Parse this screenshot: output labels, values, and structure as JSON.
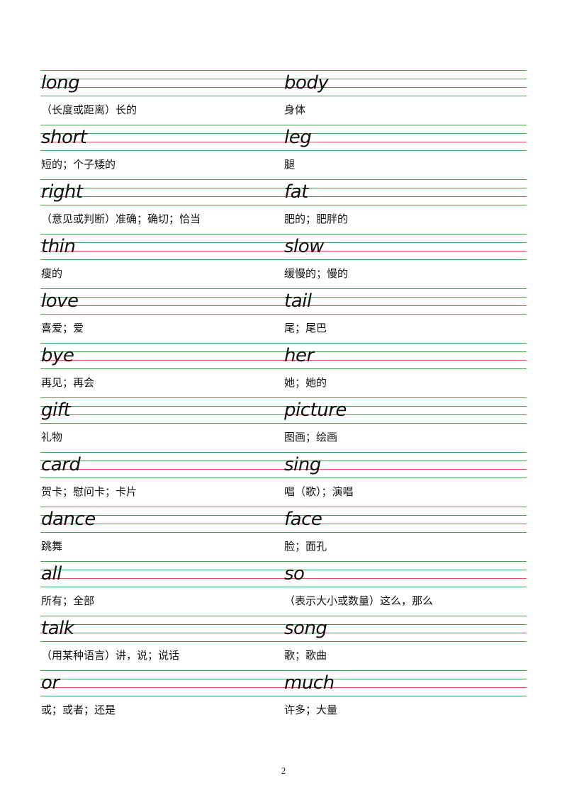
{
  "rows": [
    {
      "left": {
        "word": "long",
        "meaning": "（长度或距离）长的"
      },
      "right": {
        "word": "body",
        "meaning": "身体"
      }
    },
    {
      "left": {
        "word": "short",
        "meaning": "短的；个子矮的"
      },
      "right": {
        "word": "leg",
        "meaning": "腿"
      }
    },
    {
      "left": {
        "word": "right",
        "meaning": "（意见或判断）准确；确切；恰当"
      },
      "right": {
        "word": "fat",
        "meaning": "肥的；肥胖的"
      }
    },
    {
      "left": {
        "word": "thin",
        "meaning": "瘦的"
      },
      "right": {
        "word": "slow",
        "meaning": "缓慢的；慢的"
      }
    },
    {
      "left": {
        "word": "love",
        "meaning": "喜爱；爱"
      },
      "right": {
        "word": "tail",
        "meaning": "尾；尾巴"
      }
    },
    {
      "left": {
        "word": "bye",
        "meaning": "再见；再会"
      },
      "right": {
        "word": "her",
        "meaning": "她；她的"
      }
    },
    {
      "left": {
        "word": "gift",
        "meaning": "礼物"
      },
      "right": {
        "word": "picture",
        "meaning": "图画；绘画"
      }
    },
    {
      "left": {
        "word": "card",
        "meaning": "贺卡；慰问卡；卡片"
      },
      "right": {
        "word": "sing",
        "meaning": "唱（歌）；演唱"
      }
    },
    {
      "left": {
        "word": "dance",
        "meaning": "跳舞"
      },
      "right": {
        "word": "face",
        "meaning": "脸；面孔"
      }
    },
    {
      "left": {
        "word": "all",
        "meaning": "所有；全部"
      },
      "right": {
        "word": "so",
        "meaning": "（表示大小或数量）这么，那么"
      }
    },
    {
      "left": {
        "word": "talk",
        "meaning": "（用某种语言）讲，说；说话"
      },
      "right": {
        "word": "song",
        "meaning": "歌；歌曲"
      }
    },
    {
      "left": {
        "word": "or",
        "meaning": "或；或者；还是"
      },
      "right": {
        "word": "much",
        "meaning": "许多；大量"
      }
    }
  ],
  "page_number": "2",
  "colors": {
    "guide_line_green": "#3aa64a",
    "guide_line_red": "#e0505a",
    "text": "#111111"
  }
}
